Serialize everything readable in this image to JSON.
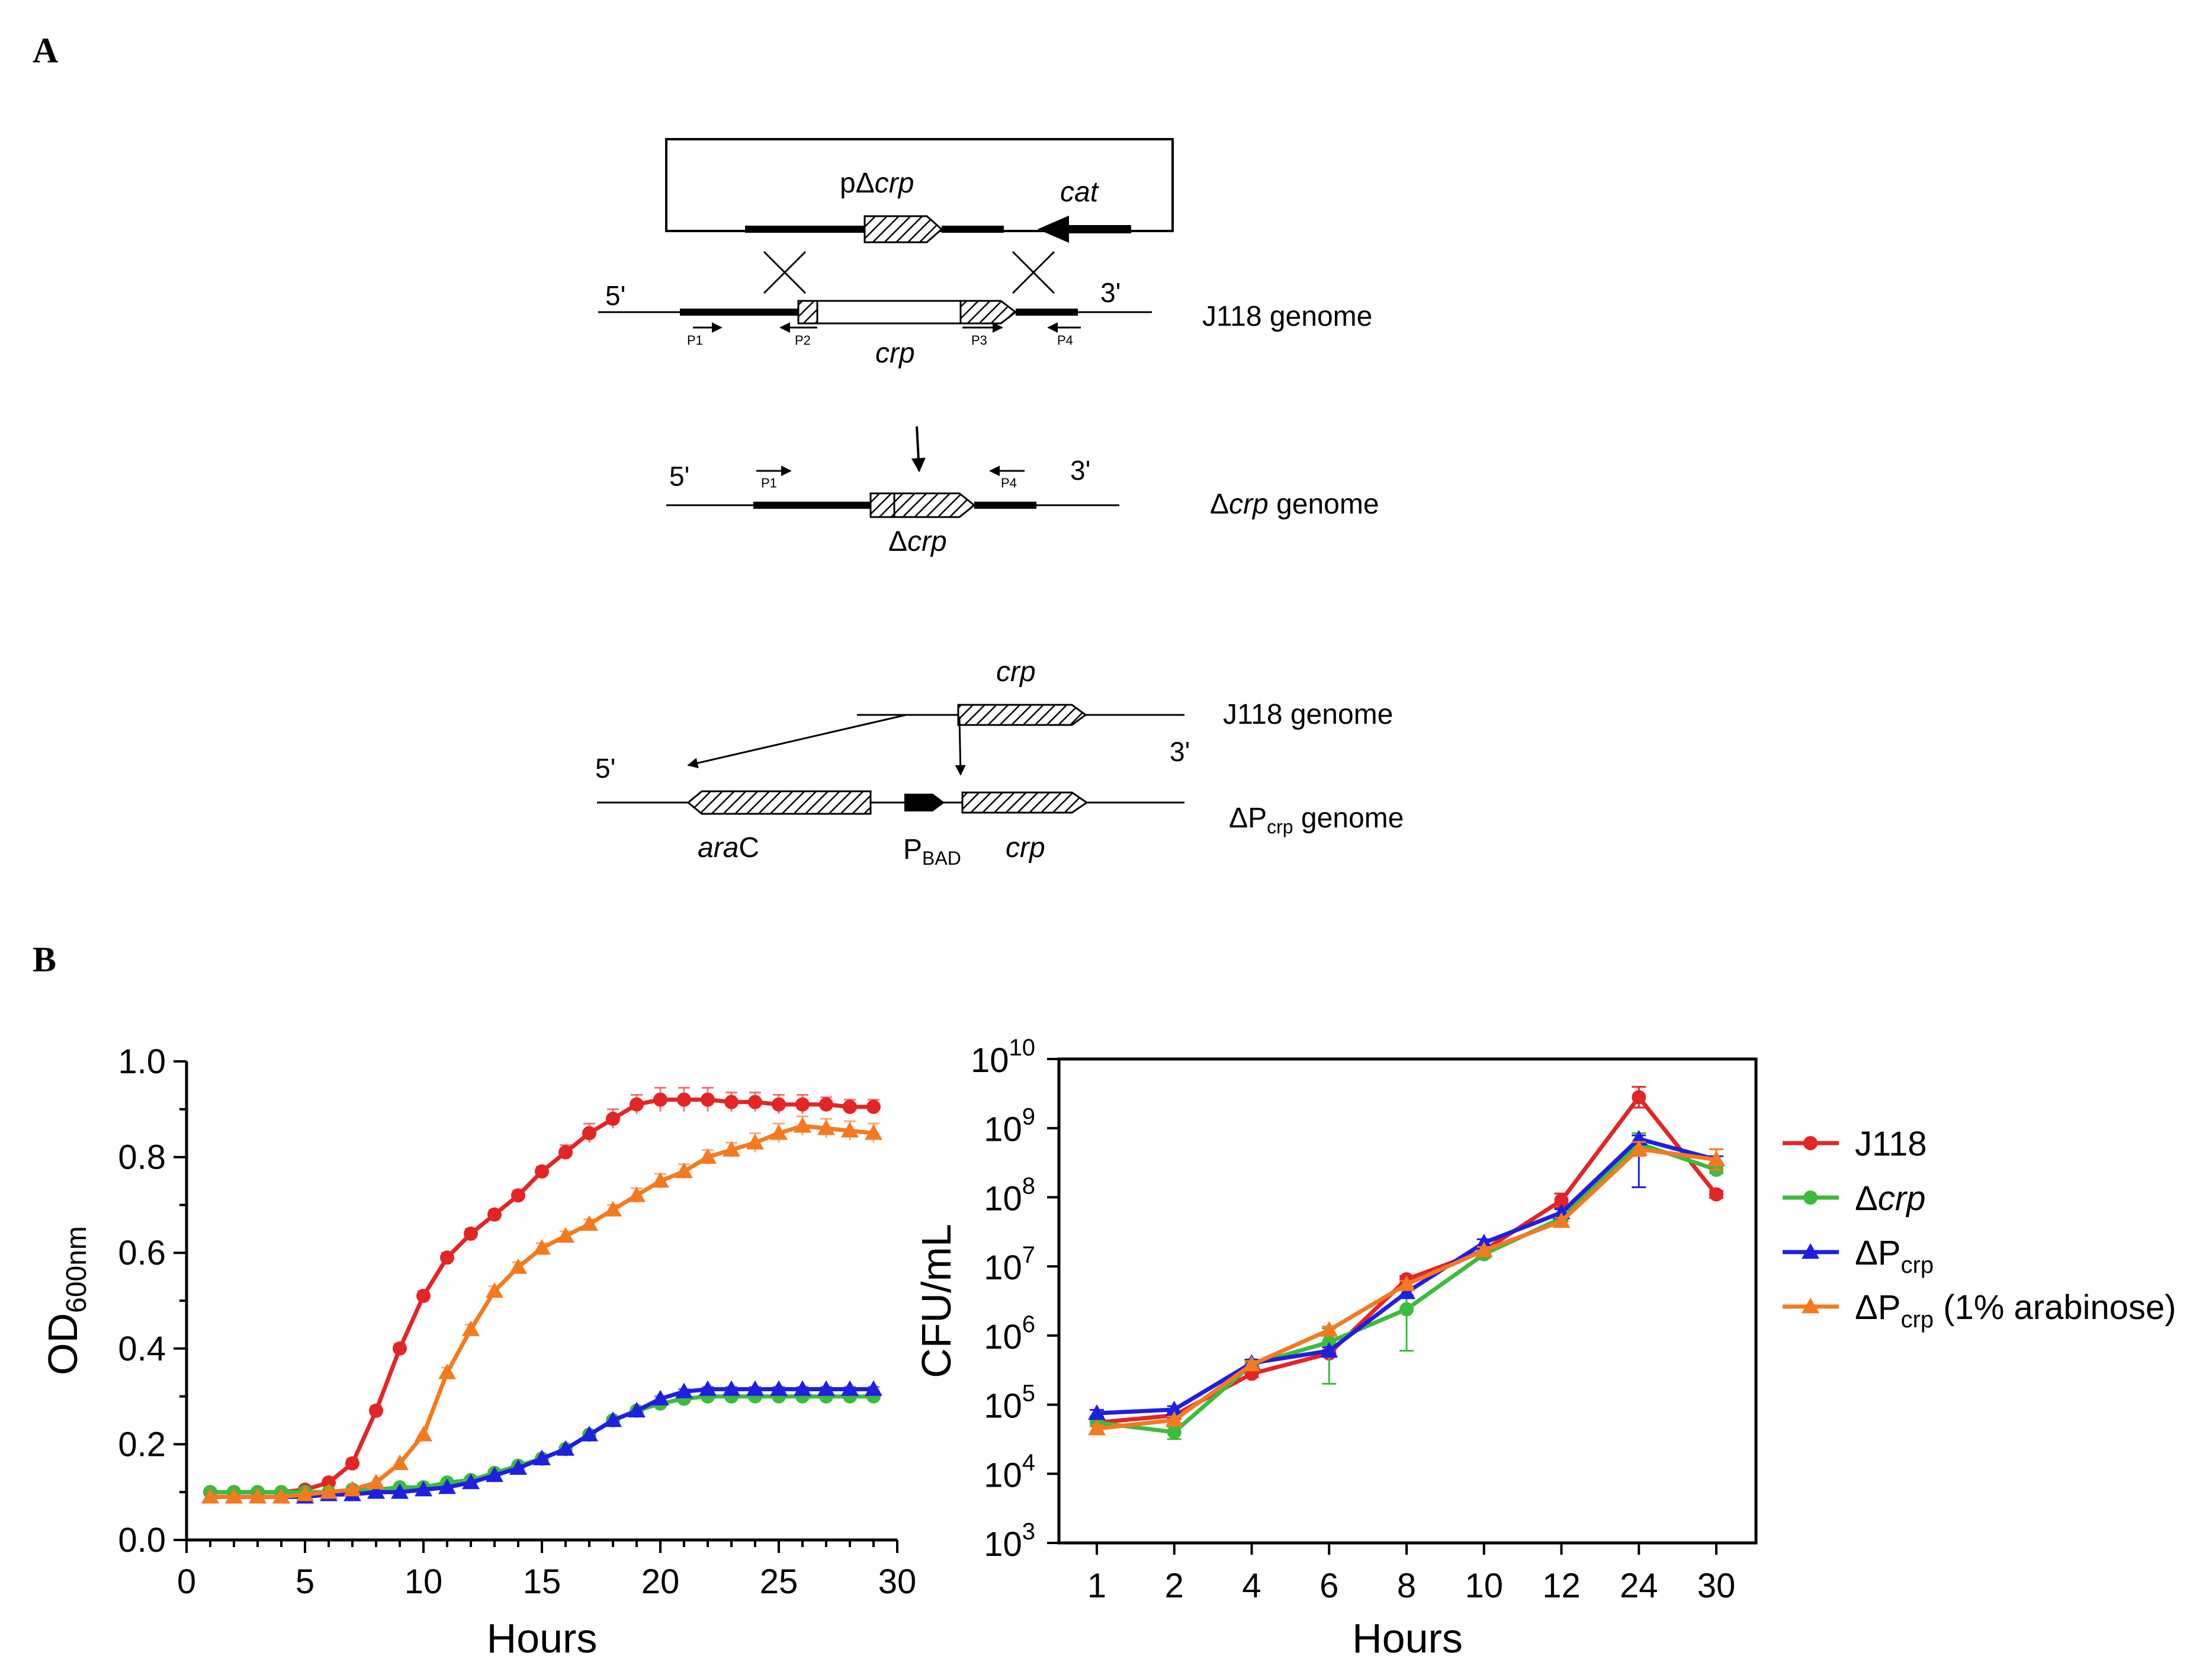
{
  "panel_a": {
    "label": "A",
    "plasmid": {
      "name_prefix": "pΔ",
      "name_italic": "crp",
      "marker": "cat"
    },
    "genome_top": {
      "five_prime": "5'",
      "three_prime": "3'",
      "gene": "crp",
      "name": "J118 genome",
      "primers": [
        "P1",
        "P2",
        "P3",
        "P4"
      ]
    },
    "genome_mid": {
      "five_prime": "5'",
      "three_prime": "3'",
      "gene_prefix": "Δ",
      "gene_italic": "crp",
      "name_prefix": "Δ",
      "name_italic": "crp",
      "name_suffix": " genome",
      "primers": [
        "P1",
        "P4"
      ]
    },
    "genome_bottom": {
      "top_line": {
        "gene": "crp",
        "name": "J118 genome"
      },
      "bottom_line": {
        "five_prime": "5'",
        "three_prime": "3'",
        "aracA_italic": "ara",
        "aracA_plain": "C",
        "promoter_main": "P",
        "promoter_sub": "BAD",
        "gene": "crp",
        "name_prefix": "ΔP",
        "name_sub": "crp",
        "name_suffix": " genome"
      }
    }
  },
  "panel_b": {
    "label": "B",
    "colors": {
      "J118": "#e32526",
      "dcrp": "#3dbb3d",
      "dPcrp": "#1f1fe0",
      "dPcrp_ara": "#f47a20"
    },
    "legend": [
      {
        "key": "J118",
        "prefix": "J118",
        "italic": "",
        "sub": "",
        "suffix": "",
        "marker": "circle"
      },
      {
        "key": "dcrp",
        "prefix": "Δ",
        "italic": "crp",
        "sub": "",
        "suffix": "",
        "marker": "circle"
      },
      {
        "key": "dPcrp",
        "prefix": "ΔP",
        "italic": "",
        "sub": "crp",
        "suffix": "",
        "marker": "triangle"
      },
      {
        "key": "dPcrp_ara",
        "prefix": "ΔP",
        "italic": "",
        "sub": "crp",
        "suffix": " (1% arabinose)",
        "marker": "triangle"
      }
    ]
  },
  "chart_data": [
    {
      "type": "line",
      "title": "",
      "xlabel": "Hours",
      "ylabel_main": "OD",
      "ylabel_sub": "600nm",
      "xlim": [
        0,
        30
      ],
      "ylim": [
        0,
        1.0
      ],
      "xticks": [
        "0",
        "5",
        "10",
        "15",
        "20",
        "25",
        "30"
      ],
      "yticks": [
        "0.0",
        "0.2",
        "0.4",
        "0.6",
        "0.8",
        "1.0"
      ],
      "x": [
        1,
        2,
        3,
        4,
        5,
        6,
        7,
        8,
        9,
        10,
        11,
        12,
        13,
        14,
        15,
        16,
        17,
        18,
        19,
        20,
        21,
        22,
        23,
        24,
        25,
        26,
        27,
        28,
        29
      ],
      "series": [
        {
          "name": "J118",
          "key": "J118",
          "marker": "circle",
          "values": [
            0.1,
            0.1,
            0.1,
            0.1,
            0.105,
            0.12,
            0.16,
            0.27,
            0.4,
            0.51,
            0.59,
            0.64,
            0.68,
            0.72,
            0.77,
            0.81,
            0.85,
            0.88,
            0.91,
            0.92,
            0.92,
            0.92,
            0.915,
            0.915,
            0.91,
            0.91,
            0.91,
            0.905,
            0.905
          ],
          "errors": [
            0,
            0,
            0,
            0,
            0,
            0,
            0.01,
            0.01,
            0.01,
            0.01,
            0.01,
            0.01,
            0.01,
            0.01,
            0.01,
            0.015,
            0.02,
            0.02,
            0.02,
            0.025,
            0.025,
            0.025,
            0.02,
            0.02,
            0.02,
            0.02,
            0.015,
            0.015,
            0.015
          ]
        },
        {
          "name": "Δcrp",
          "key": "dcrp",
          "marker": "circle",
          "values": [
            0.1,
            0.1,
            0.1,
            0.1,
            0.1,
            0.1,
            0.105,
            0.105,
            0.11,
            0.11,
            0.12,
            0.125,
            0.14,
            0.155,
            0.17,
            0.19,
            0.22,
            0.25,
            0.27,
            0.285,
            0.295,
            0.3,
            0.3,
            0.3,
            0.3,
            0.3,
            0.3,
            0.3,
            0.3
          ],
          "errors": [
            0,
            0,
            0,
            0,
            0,
            0,
            0,
            0,
            0,
            0,
            0,
            0,
            0,
            0,
            0,
            0,
            0.005,
            0.005,
            0.005,
            0.005,
            0.005,
            0.005,
            0.005,
            0.005,
            0.005,
            0.005,
            0.005,
            0.005,
            0.005
          ]
        },
        {
          "name": "ΔPcrp",
          "key": "dPcrp",
          "marker": "triangle",
          "values": [
            0.09,
            0.09,
            0.09,
            0.09,
            0.09,
            0.095,
            0.095,
            0.1,
            0.1,
            0.105,
            0.11,
            0.12,
            0.135,
            0.15,
            0.17,
            0.19,
            0.22,
            0.25,
            0.27,
            0.295,
            0.31,
            0.315,
            0.315,
            0.315,
            0.315,
            0.315,
            0.315,
            0.315,
            0.315
          ],
          "errors": [
            0,
            0,
            0,
            0,
            0,
            0,
            0,
            0,
            0,
            0,
            0,
            0,
            0,
            0,
            0,
            0,
            0,
            0,
            0,
            0.005,
            0.005,
            0.005,
            0.005,
            0.005,
            0.005,
            0.005,
            0.005,
            0.005,
            0.005
          ]
        },
        {
          "name": "ΔPcrp (1% arabinose)",
          "key": "dPcrp_ara",
          "marker": "triangle",
          "values": [
            0.09,
            0.09,
            0.09,
            0.09,
            0.095,
            0.1,
            0.105,
            0.12,
            0.16,
            0.22,
            0.35,
            0.44,
            0.52,
            0.57,
            0.61,
            0.635,
            0.66,
            0.69,
            0.72,
            0.75,
            0.77,
            0.8,
            0.815,
            0.83,
            0.85,
            0.865,
            0.86,
            0.855,
            0.85
          ],
          "errors": [
            0,
            0,
            0,
            0,
            0,
            0,
            0,
            0,
            0,
            0,
            0.01,
            0.01,
            0.01,
            0.01,
            0.01,
            0.01,
            0.01,
            0.01,
            0.015,
            0.015,
            0.015,
            0.015,
            0.015,
            0.02,
            0.02,
            0.02,
            0.02,
            0.02,
            0.02
          ]
        }
      ]
    },
    {
      "type": "line",
      "title": "",
      "xlabel": "Hours",
      "ylabel": "CFU/mL",
      "yscale": "log",
      "ylim_exp": [
        3,
        10
      ],
      "yticks_exp": [
        "3",
        "4",
        "5",
        "6",
        "7",
        "8",
        "9",
        "10"
      ],
      "ytick_base": "10",
      "categories": [
        "1",
        "2",
        "4",
        "6",
        "8",
        "10",
        "12",
        "24",
        "30"
      ],
      "series": [
        {
          "name": "J118",
          "key": "J118",
          "marker": "circle",
          "values": [
            55000,
            70000,
            280000,
            550000,
            6500000,
            17000000,
            90000000,
            2800000000,
            110000000
          ],
          "errors_up": [
            0.05,
            0.05,
            0.05,
            0.05,
            0.05,
            0.05,
            0.1,
            0.15,
            0.05
          ],
          "errors_down": [
            0.05,
            0.05,
            0.05,
            0.05,
            0.05,
            0.05,
            0.1,
            0.15,
            0.05
          ]
        },
        {
          "name": "Δcrp",
          "key": "dcrp",
          "marker": "circle",
          "values": [
            55000,
            40000,
            380000,
            800000,
            2400000,
            15000000,
            50000000,
            600000000,
            250000000
          ],
          "errors_up": [
            0.05,
            0.08,
            0.05,
            0.2,
            0.3,
            0.05,
            0.05,
            0.15,
            0.05
          ],
          "errors_down": [
            0.05,
            0.1,
            0.05,
            0.6,
            0.6,
            0.05,
            0.05,
            0.15,
            0.05
          ]
        },
        {
          "name": "ΔPcrp",
          "key": "dPcrp",
          "marker": "triangle",
          "values": [
            75000,
            85000,
            400000,
            600000,
            4200000,
            22000000,
            60000000,
            700000000,
            350000000
          ],
          "errors_up": [
            0.05,
            0.05,
            0.05,
            0.05,
            0.05,
            0.05,
            0.05,
            0.05,
            0.05
          ],
          "errors_down": [
            0.05,
            0.05,
            0.05,
            0.05,
            0.05,
            0.05,
            0.05,
            0.7,
            0.05
          ]
        },
        {
          "name": "ΔPcrp (1% arabinose)",
          "key": "dPcrp_ara",
          "marker": "triangle",
          "values": [
            45000,
            60000,
            380000,
            1200000,
            5500000,
            17000000,
            45000000,
            500000000,
            350000000
          ],
          "errors_up": [
            0.05,
            0.05,
            0.05,
            0.05,
            0.05,
            0.05,
            0.05,
            0.1,
            0.15
          ],
          "errors_down": [
            0.05,
            0.05,
            0.05,
            0.05,
            0.05,
            0.05,
            0.05,
            0.1,
            0.15
          ]
        }
      ]
    }
  ]
}
